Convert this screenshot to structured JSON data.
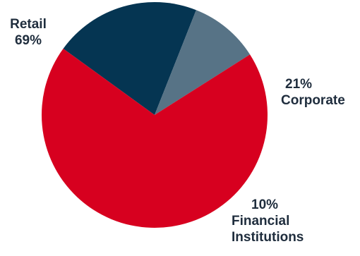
{
  "chart_data": {
    "type": "pie",
    "title": "",
    "slices": [
      {
        "label": "Retail",
        "pct_label": "69%",
        "value": 69,
        "color": "#d7001f"
      },
      {
        "label": "Corporate",
        "pct_label": "21%",
        "value": 21,
        "color": "#053552"
      },
      {
        "label": "Financial Institutions",
        "pct_label": "10%",
        "value": 10,
        "color": "#577386"
      }
    ],
    "legend": "none"
  }
}
